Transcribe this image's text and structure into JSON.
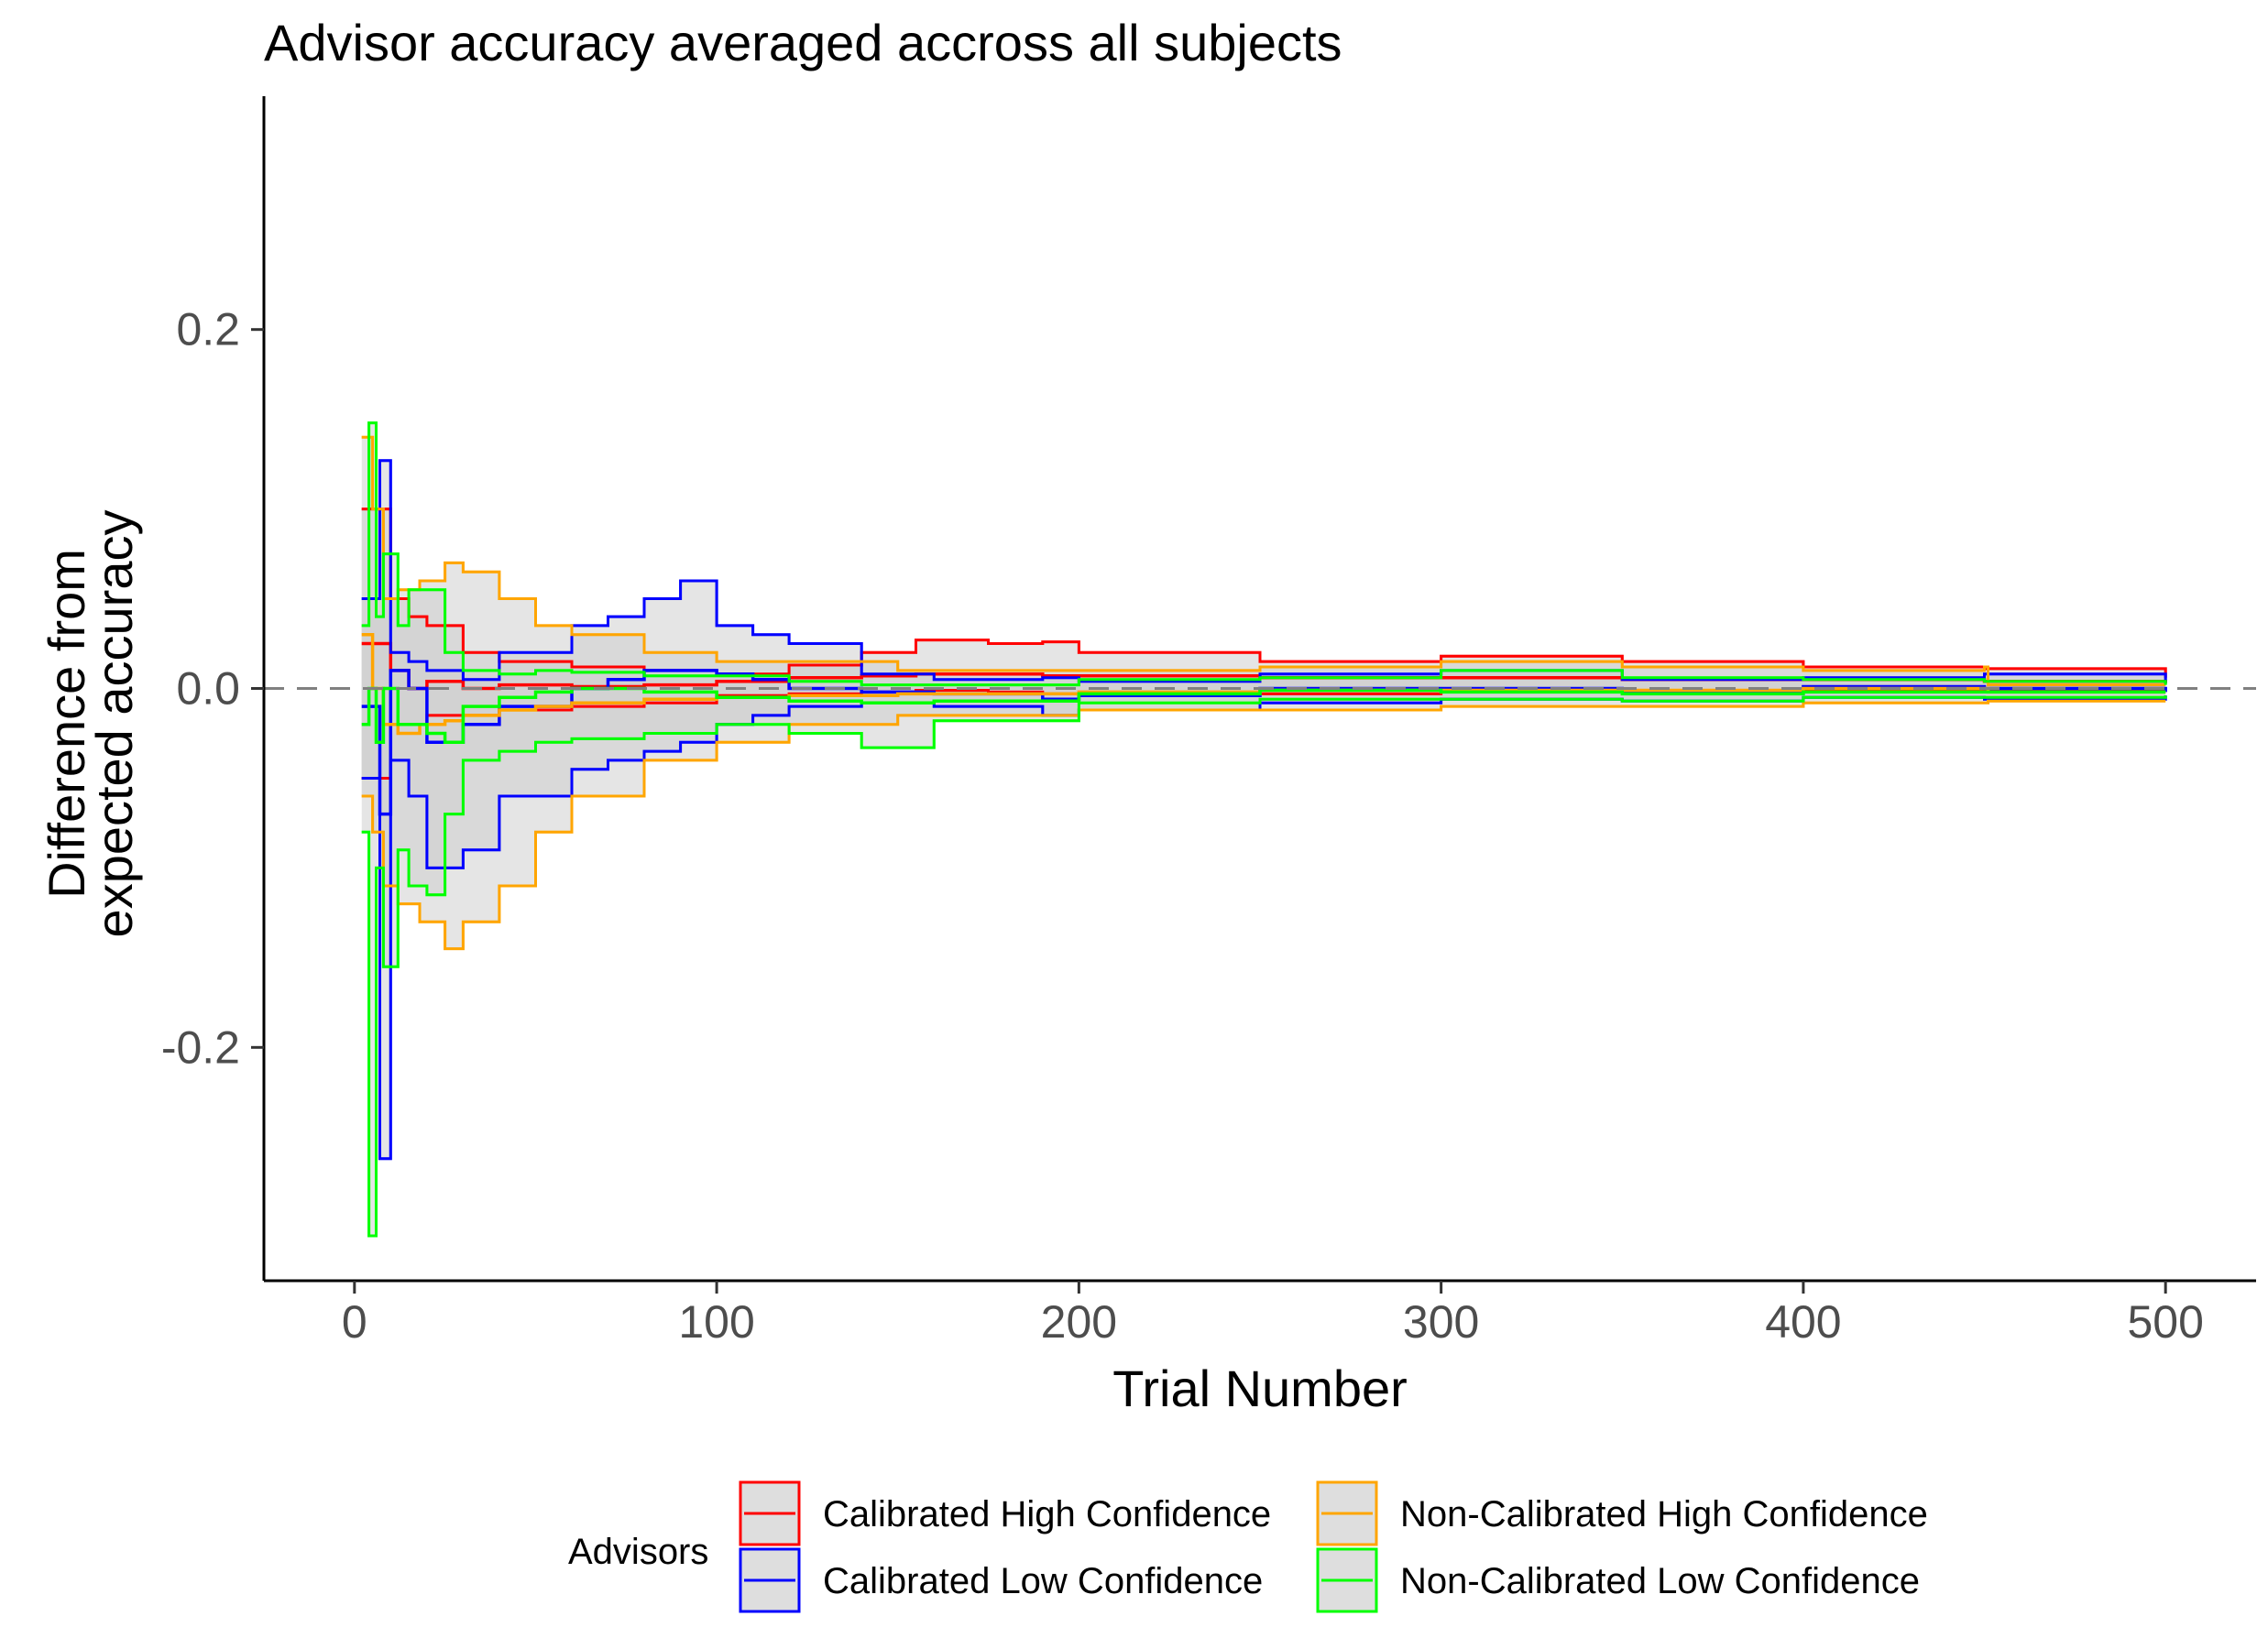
{
  "chart_data": {
    "type": "line",
    "title": "Advisor accuracy averaged accross all subjects",
    "xlabel": "Trial Number",
    "ylabel": [
      "Difference from",
      "expected accuracy"
    ],
    "xlim": [
      -25,
      525
    ],
    "ylim": [
      -0.33,
      0.33
    ],
    "x_ticks": [
      0,
      100,
      200,
      300,
      400,
      500
    ],
    "y_ticks": [
      -0.2,
      0.0,
      0.2
    ],
    "y_tick_labels": [
      "-0.2",
      "0.0",
      "0.2"
    ],
    "reference_line": {
      "y": 0,
      "style": "dashed",
      "color": "#808080"
    },
    "grid": false,
    "legend": {
      "title": "Advisors",
      "position": "bottom",
      "entries": [
        "Calibrated High Confidence",
        "Calibrated Low Confidence",
        "Non-Calibrated High Confidence",
        "Non-Calibrated Low Confidence"
      ]
    },
    "series": [
      {
        "name": "Calibrated High Confidence",
        "color": "#ff0000",
        "x": [
          2,
          5,
          8,
          10,
          15,
          20,
          30,
          40,
          60,
          80,
          100,
          120,
          140,
          155,
          175,
          190,
          200,
          250,
          300,
          350,
          400,
          450,
          500
        ],
        "upper": [
          0.1,
          0.1,
          0.1,
          0.05,
          0.04,
          0.035,
          0.02,
          0.015,
          0.012,
          0.01,
          0.008,
          0.013,
          0.02,
          0.027,
          0.025,
          0.026,
          0.02,
          0.015,
          0.018,
          0.015,
          0.012,
          0.011,
          0.006
        ],
        "mean": [
          0.025,
          0.025,
          0.025,
          0.01,
          0.0,
          0.004,
          0.0,
          0.002,
          0.001,
          0.002,
          0.004,
          0.006,
          0.007,
          0.008,
          0.008,
          0.007,
          0.007,
          0.006,
          0.006,
          0.005,
          0.005,
          0.004,
          0.003
        ],
        "lower": [
          -0.05,
          -0.05,
          -0.05,
          -0.02,
          -0.02,
          -0.015,
          -0.015,
          -0.012,
          -0.01,
          -0.008,
          -0.004,
          -0.003,
          -0.002,
          -0.001,
          -0.002,
          -0.003,
          -0.004,
          -0.003,
          -0.002,
          -0.002,
          -0.001,
          -0.001,
          -0.001
        ]
      },
      {
        "name": "Calibrated Low Confidence",
        "color": "#0000ff",
        "x": [
          2,
          5,
          7,
          10,
          15,
          20,
          30,
          40,
          60,
          70,
          80,
          90,
          100,
          110,
          120,
          140,
          160,
          190,
          200,
          250,
          300,
          350,
          400,
          450,
          500
        ],
        "upper": [
          0.05,
          0.05,
          0.127,
          0.02,
          0.015,
          0.01,
          0.005,
          0.02,
          0.035,
          0.04,
          0.05,
          0.06,
          0.035,
          0.03,
          0.025,
          0.008,
          0.005,
          0.006,
          0.004,
          0.008,
          0.01,
          0.005,
          0.006,
          0.008,
          0.003
        ],
        "mean": [
          -0.01,
          -0.01,
          -0.07,
          0.01,
          0.0,
          -0.03,
          -0.02,
          -0.01,
          0.0,
          0.005,
          0.01,
          0.01,
          0.008,
          0.005,
          0.0,
          -0.002,
          -0.003,
          -0.006,
          -0.004,
          0.0,
          0.0,
          -0.002,
          0.001,
          0.0,
          -0.002
        ],
        "lower": [
          -0.05,
          -0.05,
          -0.262,
          -0.04,
          -0.06,
          -0.1,
          -0.09,
          -0.06,
          -0.045,
          -0.04,
          -0.035,
          -0.03,
          -0.02,
          -0.015,
          -0.01,
          -0.008,
          -0.01,
          -0.015,
          -0.012,
          -0.008,
          -0.006,
          -0.007,
          -0.005,
          -0.006,
          -0.004
        ]
      },
      {
        "name": "Non-Calibrated High Confidence",
        "color": "#ffa500",
        "x": [
          2,
          5,
          8,
          12,
          18,
          25,
          30,
          40,
          50,
          60,
          80,
          100,
          120,
          150,
          200,
          250,
          300,
          350,
          400,
          450,
          451,
          500
        ],
        "upper": [
          0.14,
          0.1,
          0.05,
          0.055,
          0.06,
          0.07,
          0.065,
          0.05,
          0.035,
          0.03,
          0.02,
          0.015,
          0.015,
          0.01,
          0.01,
          0.012,
          0.015,
          0.012,
          0.01,
          0.012,
          0.002,
          0.002
        ],
        "mean": [
          0.03,
          0.0,
          -0.02,
          -0.025,
          -0.02,
          -0.018,
          -0.015,
          -0.012,
          -0.01,
          -0.008,
          -0.006,
          -0.005,
          -0.004,
          -0.003,
          -0.002,
          -0.001,
          -0.001,
          -0.001,
          0.0,
          0.0,
          -0.002,
          -0.002
        ],
        "lower": [
          -0.06,
          -0.08,
          -0.11,
          -0.12,
          -0.13,
          -0.145,
          -0.13,
          -0.11,
          -0.08,
          -0.06,
          -0.04,
          -0.03,
          -0.02,
          -0.015,
          -0.012,
          -0.012,
          -0.01,
          -0.01,
          -0.008,
          -0.008,
          -0.007,
          -0.007
        ]
      },
      {
        "name": "Non-Calibrated Low Confidence",
        "color": "#00ff00",
        "x": [
          2,
          4,
          6,
          8,
          12,
          15,
          20,
          25,
          30,
          40,
          50,
          60,
          80,
          100,
          120,
          140,
          160,
          200,
          250,
          300,
          350,
          400,
          450,
          500
        ],
        "upper": [
          0.035,
          0.148,
          0.04,
          0.075,
          0.035,
          0.055,
          0.055,
          0.02,
          0.01,
          0.008,
          0.01,
          0.009,
          0.007,
          0.007,
          0.004,
          0.002,
          0.002,
          0.005,
          0.006,
          0.01,
          0.006,
          0.005,
          0.004,
          0.002
        ],
        "mean": [
          -0.02,
          0.0,
          -0.03,
          0.0,
          -0.02,
          -0.02,
          -0.025,
          -0.03,
          -0.01,
          -0.005,
          -0.002,
          0.0,
          -0.002,
          -0.005,
          -0.007,
          -0.008,
          -0.007,
          -0.003,
          -0.001,
          -0.002,
          -0.003,
          -0.002,
          -0.002,
          -0.002
        ],
        "lower": [
          -0.08,
          -0.305,
          -0.1,
          -0.155,
          -0.09,
          -0.11,
          -0.115,
          -0.07,
          -0.04,
          -0.035,
          -0.03,
          -0.028,
          -0.025,
          -0.02,
          -0.025,
          -0.033,
          -0.018,
          -0.008,
          -0.006,
          -0.006,
          -0.007,
          -0.005,
          -0.005,
          -0.004
        ]
      }
    ]
  }
}
